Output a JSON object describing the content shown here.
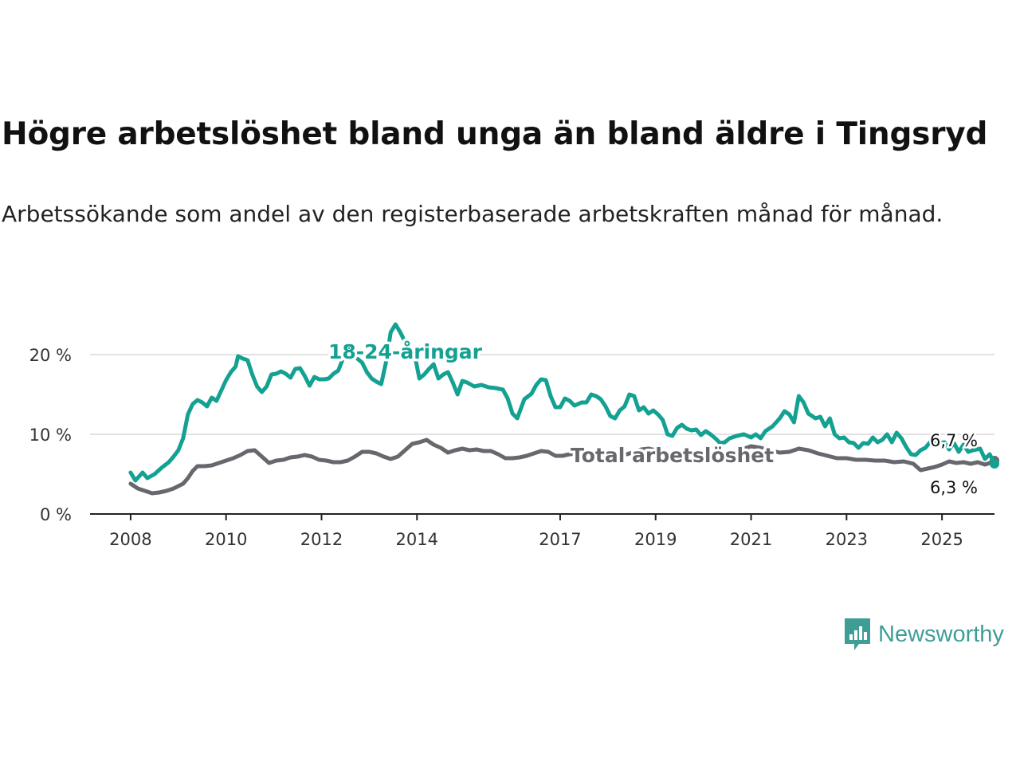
{
  "title": "Högre arbetslöshet bland unga än bland äldre i Tingsryd",
  "subtitle": "Arbetssökande som andel av den registerbaserade arbetskraften månad för månad.",
  "brand": {
    "name": "Newsworthy",
    "color": "#3e9e96"
  },
  "chart_data": {
    "type": "line",
    "x_ticks": [
      "2008",
      "2010",
      "2012",
      "2014",
      "2017",
      "2019",
      "2021",
      "2023",
      "2025"
    ],
    "y_ticks": [
      {
        "value": 0,
        "label": "0 %"
      },
      {
        "value": 10,
        "label": "10 %"
      },
      {
        "value": 20,
        "label": "20 %"
      }
    ],
    "ylim": [
      0,
      25
    ],
    "xlim": [
      2007.15,
      2026.1
    ],
    "grid": "horizontal",
    "series": [
      {
        "name": "18-24-åringar",
        "color": "#13a192",
        "end_label": "6,3 %",
        "points": [
          [
            2008.0,
            5.2
          ],
          [
            2008.1,
            4.2
          ],
          [
            2008.25,
            5.2
          ],
          [
            2008.35,
            4.5
          ],
          [
            2008.5,
            5.0
          ],
          [
            2008.65,
            5.8
          ],
          [
            2008.8,
            6.5
          ],
          [
            2008.9,
            7.2
          ],
          [
            2009.0,
            8.0
          ],
          [
            2009.1,
            9.5
          ],
          [
            2009.2,
            12.5
          ],
          [
            2009.3,
            13.8
          ],
          [
            2009.4,
            14.3
          ],
          [
            2009.5,
            14.0
          ],
          [
            2009.6,
            13.5
          ],
          [
            2009.7,
            14.6
          ],
          [
            2009.8,
            14.2
          ],
          [
            2009.9,
            15.5
          ],
          [
            2010.0,
            16.8
          ],
          [
            2010.1,
            17.8
          ],
          [
            2010.2,
            18.5
          ],
          [
            2010.25,
            19.8
          ],
          [
            2010.35,
            19.5
          ],
          [
            2010.45,
            19.3
          ],
          [
            2010.55,
            17.5
          ],
          [
            2010.65,
            16.0
          ],
          [
            2010.75,
            15.3
          ],
          [
            2010.85,
            16.0
          ],
          [
            2010.95,
            17.5
          ],
          [
            2011.05,
            17.6
          ],
          [
            2011.15,
            17.9
          ],
          [
            2011.25,
            17.6
          ],
          [
            2011.35,
            17.1
          ],
          [
            2011.45,
            18.2
          ],
          [
            2011.55,
            18.3
          ],
          [
            2011.65,
            17.3
          ],
          [
            2011.75,
            16.1
          ],
          [
            2011.85,
            17.2
          ],
          [
            2011.95,
            16.9
          ],
          [
            2012.05,
            16.9
          ],
          [
            2012.15,
            17.0
          ],
          [
            2012.25,
            17.6
          ],
          [
            2012.35,
            18.0
          ],
          [
            2012.45,
            19.5
          ],
          [
            2012.55,
            21.2
          ],
          [
            2012.65,
            20.0
          ],
          [
            2012.75,
            19.5
          ],
          [
            2012.85,
            19.0
          ],
          [
            2012.95,
            17.8
          ],
          [
            2013.05,
            17.0
          ],
          [
            2013.15,
            16.6
          ],
          [
            2013.25,
            16.3
          ],
          [
            2013.35,
            19.0
          ],
          [
            2013.45,
            22.8
          ],
          [
            2013.55,
            23.8
          ],
          [
            2013.65,
            22.8
          ],
          [
            2013.75,
            21.6
          ],
          [
            2013.85,
            21.0
          ],
          [
            2013.95,
            20.0
          ],
          [
            2014.05,
            17.0
          ],
          [
            2014.15,
            17.5
          ],
          [
            2014.25,
            18.2
          ],
          [
            2014.35,
            18.8
          ],
          [
            2014.45,
            17.0
          ],
          [
            2014.55,
            17.5
          ],
          [
            2014.65,
            17.8
          ],
          [
            2014.75,
            16.5
          ],
          [
            2014.85,
            15.0
          ],
          [
            2014.95,
            16.7
          ],
          [
            2015.05,
            16.5
          ],
          [
            2015.2,
            16.0
          ],
          [
            2015.35,
            16.2
          ],
          [
            2015.5,
            15.9
          ],
          [
            2015.65,
            15.8
          ],
          [
            2015.8,
            15.6
          ],
          [
            2015.9,
            14.5
          ],
          [
            2016.0,
            12.6
          ],
          [
            2016.1,
            12.0
          ],
          [
            2016.25,
            14.4
          ],
          [
            2016.4,
            15.1
          ],
          [
            2016.5,
            16.2
          ],
          [
            2016.6,
            16.9
          ],
          [
            2016.7,
            16.8
          ],
          [
            2016.8,
            14.8
          ],
          [
            2016.9,
            13.4
          ],
          [
            2017.0,
            13.4
          ],
          [
            2017.1,
            14.5
          ],
          [
            2017.2,
            14.2
          ],
          [
            2017.3,
            13.6
          ],
          [
            2017.45,
            14.0
          ],
          [
            2017.55,
            14.0
          ],
          [
            2017.65,
            15.0
          ],
          [
            2017.75,
            14.8
          ],
          [
            2017.85,
            14.4
          ],
          [
            2017.95,
            13.5
          ],
          [
            2018.05,
            12.3
          ],
          [
            2018.15,
            12.0
          ],
          [
            2018.25,
            13.0
          ],
          [
            2018.35,
            13.5
          ],
          [
            2018.45,
            15.0
          ],
          [
            2018.55,
            14.8
          ],
          [
            2018.65,
            13.0
          ],
          [
            2018.75,
            13.4
          ],
          [
            2018.85,
            12.6
          ],
          [
            2018.95,
            13.0
          ],
          [
            2019.05,
            12.5
          ],
          [
            2019.15,
            11.8
          ],
          [
            2019.25,
            10.0
          ],
          [
            2019.35,
            9.8
          ],
          [
            2019.45,
            10.8
          ],
          [
            2019.55,
            11.2
          ],
          [
            2019.65,
            10.7
          ],
          [
            2019.75,
            10.5
          ],
          [
            2019.85,
            10.6
          ],
          [
            2019.95,
            9.9
          ],
          [
            2020.05,
            10.4
          ],
          [
            2020.15,
            10.0
          ],
          [
            2020.25,
            9.5
          ],
          [
            2020.35,
            8.9
          ],
          [
            2020.45,
            9.0
          ],
          [
            2020.55,
            9.5
          ],
          [
            2020.7,
            9.8
          ],
          [
            2020.85,
            10.0
          ],
          [
            2021.0,
            9.6
          ],
          [
            2021.1,
            10.0
          ],
          [
            2021.2,
            9.5
          ],
          [
            2021.3,
            10.4
          ],
          [
            2021.45,
            11.0
          ],
          [
            2021.6,
            12.0
          ],
          [
            2021.7,
            12.9
          ],
          [
            2021.8,
            12.5
          ],
          [
            2021.9,
            11.5
          ],
          [
            2022.0,
            14.8
          ],
          [
            2022.1,
            14.0
          ],
          [
            2022.2,
            12.6
          ],
          [
            2022.35,
            12.0
          ],
          [
            2022.45,
            12.2
          ],
          [
            2022.55,
            11.0
          ],
          [
            2022.65,
            12.0
          ],
          [
            2022.75,
            10.0
          ],
          [
            2022.85,
            9.5
          ],
          [
            2022.95,
            9.6
          ],
          [
            2023.05,
            9.0
          ],
          [
            2023.15,
            8.9
          ],
          [
            2023.25,
            8.3
          ],
          [
            2023.35,
            8.9
          ],
          [
            2023.45,
            8.8
          ],
          [
            2023.55,
            9.6
          ],
          [
            2023.65,
            9.0
          ],
          [
            2023.75,
            9.3
          ],
          [
            2023.85,
            10.0
          ],
          [
            2023.95,
            9.0
          ],
          [
            2024.05,
            10.2
          ],
          [
            2024.15,
            9.5
          ],
          [
            2024.25,
            8.4
          ],
          [
            2024.35,
            7.5
          ],
          [
            2024.45,
            7.4
          ],
          [
            2024.55,
            8.0
          ],
          [
            2024.65,
            8.3
          ],
          [
            2024.75,
            9.0
          ],
          [
            2024.9,
            8.8
          ],
          [
            2025.05,
            9.0
          ],
          [
            2025.15,
            8.1
          ],
          [
            2025.25,
            8.9
          ],
          [
            2025.35,
            7.8
          ],
          [
            2025.45,
            8.7
          ],
          [
            2025.55,
            7.8
          ],
          [
            2025.65,
            8.0
          ],
          [
            2025.8,
            8.2
          ],
          [
            2025.9,
            6.9
          ],
          [
            2026.0,
            7.5
          ],
          [
            2026.1,
            6.3
          ]
        ]
      },
      {
        "name": "Total arbetslöshet",
        "color": "#67676e",
        "end_label": "6,7 %",
        "points": [
          [
            2008.0,
            3.8
          ],
          [
            2008.15,
            3.2
          ],
          [
            2008.3,
            2.9
          ],
          [
            2008.45,
            2.6
          ],
          [
            2008.6,
            2.7
          ],
          [
            2008.75,
            2.9
          ],
          [
            2008.9,
            3.2
          ],
          [
            2009.0,
            3.5
          ],
          [
            2009.1,
            3.8
          ],
          [
            2009.2,
            4.5
          ],
          [
            2009.3,
            5.4
          ],
          [
            2009.4,
            6.0
          ],
          [
            2009.55,
            6.0
          ],
          [
            2009.7,
            6.1
          ],
          [
            2009.85,
            6.4
          ],
          [
            2010.0,
            6.7
          ],
          [
            2010.15,
            7.0
          ],
          [
            2010.3,
            7.4
          ],
          [
            2010.45,
            7.9
          ],
          [
            2010.6,
            8.0
          ],
          [
            2010.75,
            7.2
          ],
          [
            2010.9,
            6.4
          ],
          [
            2011.05,
            6.7
          ],
          [
            2011.2,
            6.8
          ],
          [
            2011.35,
            7.1
          ],
          [
            2011.5,
            7.2
          ],
          [
            2011.65,
            7.4
          ],
          [
            2011.8,
            7.2
          ],
          [
            2011.95,
            6.8
          ],
          [
            2012.1,
            6.7
          ],
          [
            2012.25,
            6.5
          ],
          [
            2012.4,
            6.5
          ],
          [
            2012.55,
            6.7
          ],
          [
            2012.7,
            7.2
          ],
          [
            2012.85,
            7.8
          ],
          [
            2013.0,
            7.8
          ],
          [
            2013.15,
            7.6
          ],
          [
            2013.3,
            7.2
          ],
          [
            2013.45,
            6.9
          ],
          [
            2013.6,
            7.2
          ],
          [
            2013.75,
            8.0
          ],
          [
            2013.9,
            8.8
          ],
          [
            2014.05,
            9.0
          ],
          [
            2014.2,
            9.3
          ],
          [
            2014.35,
            8.7
          ],
          [
            2014.5,
            8.3
          ],
          [
            2014.65,
            7.7
          ],
          [
            2014.8,
            8.0
          ],
          [
            2014.95,
            8.2
          ],
          [
            2015.1,
            8.0
          ],
          [
            2015.25,
            8.1
          ],
          [
            2015.4,
            7.9
          ],
          [
            2015.55,
            7.9
          ],
          [
            2015.7,
            7.5
          ],
          [
            2015.85,
            7.0
          ],
          [
            2016.0,
            7.0
          ],
          [
            2016.15,
            7.1
          ],
          [
            2016.3,
            7.3
          ],
          [
            2016.45,
            7.6
          ],
          [
            2016.6,
            7.9
          ],
          [
            2016.75,
            7.8
          ],
          [
            2016.9,
            7.3
          ],
          [
            2017.05,
            7.3
          ],
          [
            2017.2,
            7.5
          ],
          [
            2017.35,
            7.6
          ],
          [
            2017.5,
            7.6
          ],
          [
            2017.65,
            7.4
          ],
          [
            2017.8,
            7.3
          ],
          [
            2017.95,
            7.3
          ],
          [
            2018.1,
            7.5
          ],
          [
            2018.25,
            7.7
          ],
          [
            2018.4,
            7.5
          ],
          [
            2018.55,
            7.8
          ],
          [
            2018.7,
            8.1
          ],
          [
            2018.85,
            8.2
          ],
          [
            2019.0,
            8.0
          ],
          [
            2019.2,
            7.6
          ],
          [
            2019.4,
            7.3
          ],
          [
            2019.6,
            7.4
          ],
          [
            2019.8,
            7.6
          ],
          [
            2020.0,
            7.9
          ],
          [
            2020.2,
            7.6
          ],
          [
            2020.4,
            7.5
          ],
          [
            2020.6,
            7.8
          ],
          [
            2020.8,
            8.1
          ],
          [
            2021.0,
            8.5
          ],
          [
            2021.2,
            8.3
          ],
          [
            2021.4,
            8.0
          ],
          [
            2021.6,
            7.7
          ],
          [
            2021.8,
            7.8
          ],
          [
            2022.0,
            8.2
          ],
          [
            2022.2,
            8.0
          ],
          [
            2022.4,
            7.6
          ],
          [
            2022.6,
            7.3
          ],
          [
            2022.8,
            7.0
          ],
          [
            2023.0,
            7.0
          ],
          [
            2023.2,
            6.8
          ],
          [
            2023.4,
            6.8
          ],
          [
            2023.6,
            6.7
          ],
          [
            2023.8,
            6.7
          ],
          [
            2024.0,
            6.5
          ],
          [
            2024.2,
            6.6
          ],
          [
            2024.4,
            6.3
          ],
          [
            2024.55,
            5.5
          ],
          [
            2024.7,
            5.7
          ],
          [
            2024.85,
            5.9
          ],
          [
            2025.0,
            6.2
          ],
          [
            2025.15,
            6.6
          ],
          [
            2025.3,
            6.4
          ],
          [
            2025.45,
            6.5
          ],
          [
            2025.6,
            6.3
          ],
          [
            2025.75,
            6.5
          ],
          [
            2025.9,
            6.2
          ],
          [
            2026.0,
            6.4
          ],
          [
            2026.1,
            6.7
          ]
        ]
      }
    ]
  }
}
